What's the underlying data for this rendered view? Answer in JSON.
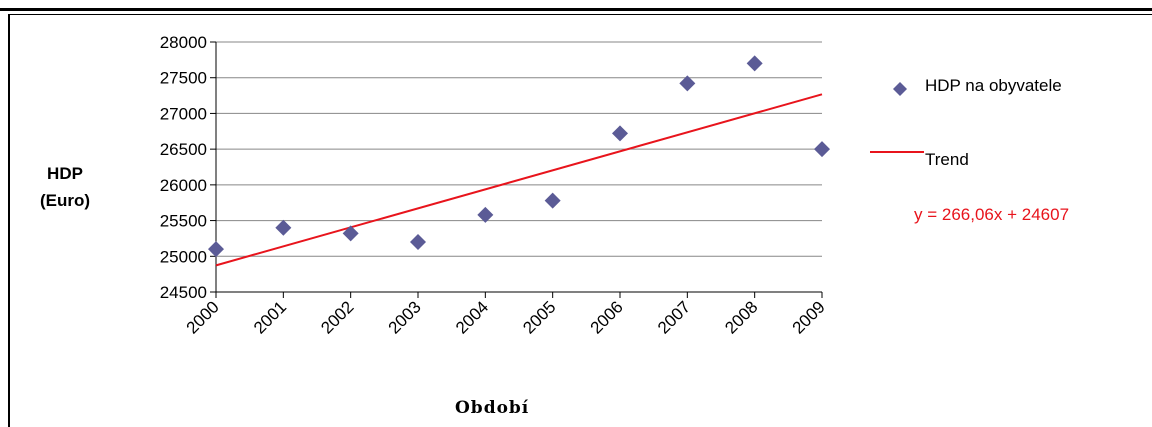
{
  "chart_data": {
    "type": "scatter",
    "ylabel_line1": "HDP",
    "ylabel_line2": "(Euro)",
    "xlabel": "Období",
    "categories": [
      "2000",
      "2001",
      "2002",
      "2003",
      "2004",
      "2005",
      "2006",
      "2007",
      "2008",
      "2009"
    ],
    "series": [
      {
        "name": "HDP na obyvatele",
        "color": "#5b5b96",
        "marker": "diamond",
        "values": [
          25100,
          25400,
          25320,
          25200,
          25580,
          25780,
          26720,
          27420,
          27700,
          26500
        ]
      },
      {
        "name": "Trend",
        "color": "#e8141c",
        "type": "line",
        "values": [
          24873.06,
          25139.12,
          25405.18,
          25671.24,
          25937.3,
          26203.36,
          26469.42,
          26735.48,
          27001.54,
          27267.6
        ]
      }
    ],
    "trendline_equation": "y = 266,06x + 24607",
    "ylim": [
      24500,
      28000
    ],
    "yticks": [
      "24500",
      "25000",
      "25500",
      "26000",
      "26500",
      "27000",
      "27500",
      "28000"
    ],
    "grid": true,
    "legend_position": "right"
  }
}
